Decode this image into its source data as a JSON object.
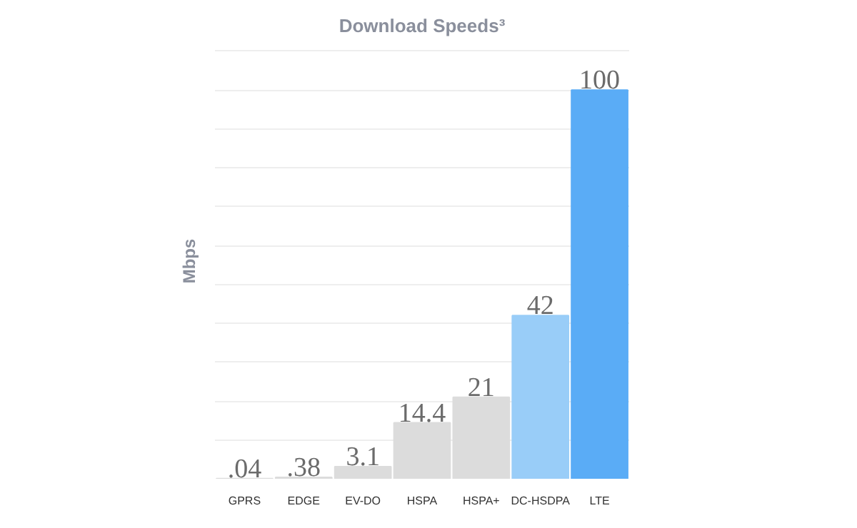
{
  "chart_data": {
    "type": "bar",
    "title": "Download Speeds³",
    "ylabel": "Mbps",
    "categories": [
      "GPRS",
      "EDGE",
      "EV-DO",
      "HSPA",
      "HSPA+",
      "DC-HSDPA",
      "LTE"
    ],
    "values": [
      0.04,
      0.38,
      3.1,
      14.4,
      21,
      42,
      100
    ],
    "colors": [
      "#dcdcdc",
      "#dcdcdc",
      "#dcdcdc",
      "#dcdcdc",
      "#dcdcdc",
      "#99cdf8",
      "#5aacf6"
    ],
    "value_labels": [
      ".04",
      ".38",
      "3.1",
      "14.4",
      "21",
      "42",
      "100"
    ],
    "grid": "y",
    "tick_labels": "x"
  }
}
